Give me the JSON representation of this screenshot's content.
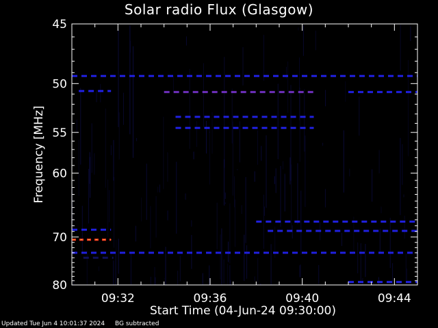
{
  "chart_data": {
    "type": "heatmap",
    "title": "Solar radio Flux (Glasgow)",
    "xlabel": "Start Time (04-Jun-24 09:30:00)",
    "ylabel": "Frequency [MHz]",
    "x_ticks": [
      "09:32",
      "09:36",
      "09:40",
      "09:44"
    ],
    "x_tick_minutes": [
      2,
      6,
      10,
      14
    ],
    "x_range_minutes": [
      0,
      15
    ],
    "y_ticks": [
      45,
      50,
      55,
      60,
      70,
      80
    ],
    "y_range": [
      45,
      80
    ],
    "y_scale": "reciprocal",
    "colors": {
      "background": "#000000",
      "low": "#10105a",
      "mid": "#2020e0",
      "high": "#7030c0",
      "peak": "#ff3020"
    },
    "features": [
      {
        "kind": "hline",
        "freq": 49.3,
        "t0": 0.0,
        "t1": 15.0,
        "level": 0.55
      },
      {
        "kind": "hline",
        "freq": 50.7,
        "t0": 0.3,
        "t1": 1.7,
        "level": 0.7
      },
      {
        "kind": "hline",
        "freq": 50.8,
        "t0": 4.0,
        "t1": 10.5,
        "level": 0.85
      },
      {
        "kind": "hline",
        "freq": 50.8,
        "t0": 12.0,
        "t1": 15.0,
        "level": 0.55
      },
      {
        "kind": "hline",
        "freq": 53.3,
        "t0": 4.5,
        "t1": 10.5,
        "level": 0.6
      },
      {
        "kind": "hline",
        "freq": 54.5,
        "t0": 4.5,
        "t1": 10.5,
        "level": 0.6
      },
      {
        "kind": "hline",
        "freq": 67.3,
        "t0": 8.0,
        "t1": 15.0,
        "level": 0.65
      },
      {
        "kind": "hline",
        "freq": 68.9,
        "t0": 8.5,
        "t1": 15.0,
        "level": 0.55
      },
      {
        "kind": "hline",
        "freq": 68.7,
        "t0": 0.0,
        "t1": 1.7,
        "level": 0.55
      },
      {
        "kind": "hline",
        "freq": 70.5,
        "t0": 0.0,
        "t1": 1.7,
        "level": 1.0
      },
      {
        "kind": "hline",
        "freq": 73.0,
        "t0": 0.0,
        "t1": 15.0,
        "level": 0.5
      },
      {
        "kind": "hline",
        "freq": 74.0,
        "t0": 0.5,
        "t1": 1.8,
        "level": 0.35
      },
      {
        "kind": "hline",
        "freq": 79.3,
        "t0": 12.0,
        "t1": 15.0,
        "level": 0.45
      }
    ]
  },
  "footer": {
    "updated": "Updated Tue Jun  4 10:01:37 2024",
    "note": "BG subtracted"
  }
}
